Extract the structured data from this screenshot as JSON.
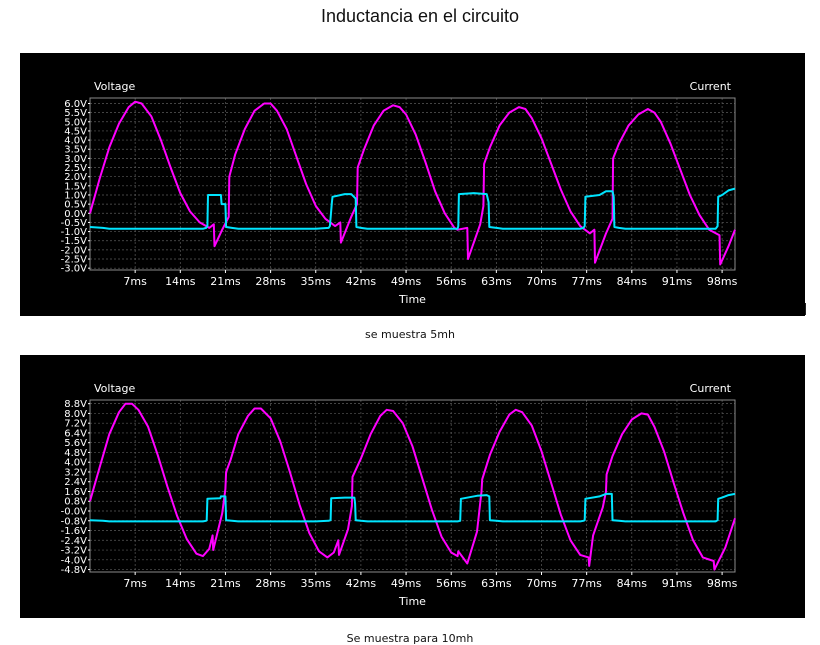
{
  "page_title": "Inductancia en el circuito",
  "colors": {
    "voltage": "#ff00ff",
    "current": "#00e5ff",
    "background": "#000000",
    "grid": "#5a5a5a",
    "text": "#ffffff"
  },
  "chart_data": [
    {
      "type": "line",
      "caption": "se muestra 5mh",
      "left_axis_label": "Voltage",
      "right_axis_label": "Current",
      "xlabel": "Time",
      "xlim": [
        0,
        100
      ],
      "ylim": [
        -3.1,
        6.3
      ],
      "x_ticks": [
        7,
        14,
        21,
        28,
        35,
        42,
        49,
        56,
        63,
        70,
        77,
        84,
        91,
        98
      ],
      "x_tick_labels": [
        "7ms",
        "14ms",
        "21ms",
        "28ms",
        "35ms",
        "42ms",
        "49ms",
        "56ms",
        "63ms",
        "70ms",
        "77ms",
        "84ms",
        "91ms",
        "98ms"
      ],
      "y_ticks": [
        6.0,
        5.5,
        5.0,
        4.5,
        4.0,
        3.5,
        3.0,
        2.5,
        2.0,
        1.5,
        1.0,
        0.5,
        0.0,
        -0.5,
        -1.0,
        -1.5,
        -2.0,
        -2.5,
        -3.0
      ],
      "y_tick_labels": [
        "6.0V",
        "5.5V",
        "5.0V",
        "4.5V",
        "4.0V",
        "3.5V",
        "3.0V",
        "2.5V",
        "2.0V",
        "1.5V",
        "1.0V",
        "0.5V",
        "0.0V",
        "-0.5V",
        "-1.0V",
        "-1.5V",
        "-2.0V",
        "-2.5V",
        "-3.0V"
      ],
      "grid": true,
      "series": [
        {
          "role": "voltage",
          "x": [
            0,
            1.5,
            3,
            4.5,
            6,
            7,
            8,
            9.5,
            11,
            12.5,
            14,
            15.5,
            17,
            18.5,
            19.2,
            19.3,
            20.5,
            21.5,
            21.6,
            22.5,
            24,
            25.5,
            27,
            28,
            29,
            30.5,
            32,
            33.5,
            35,
            36.5,
            38,
            38.8,
            38.9,
            40.5,
            41.4,
            41.5,
            42.5,
            44,
            45.5,
            47,
            48,
            49,
            50.5,
            52,
            53.5,
            55,
            56.5,
            57,
            58.5,
            58.6,
            60.5,
            61,
            61.1,
            62,
            63.5,
            65,
            66.5,
            67.5,
            68.5,
            70,
            71.5,
            73,
            74.5,
            76,
            77.5,
            78.2,
            78.3,
            80,
            81,
            81.1,
            82,
            83.5,
            85,
            86.5,
            87.5,
            88.5,
            90,
            91.5,
            93,
            94.5,
            96,
            97.6,
            97.7,
            99,
            100
          ],
          "y": [
            0.0,
            1.9,
            3.6,
            4.9,
            5.8,
            6.1,
            6.0,
            5.3,
            4.0,
            2.5,
            1.1,
            0.1,
            -0.5,
            -0.8,
            -0.6,
            -1.8,
            -0.9,
            -0.2,
            2.0,
            3.2,
            4.6,
            5.6,
            6.0,
            6.0,
            5.6,
            4.6,
            3.1,
            1.6,
            0.4,
            -0.3,
            -0.7,
            -0.5,
            -1.6,
            -0.2,
            0.5,
            2.5,
            3.5,
            4.8,
            5.6,
            5.9,
            5.8,
            5.4,
            4.3,
            2.8,
            1.2,
            0.0,
            -0.8,
            -0.9,
            -0.8,
            -2.5,
            -0.6,
            0.4,
            2.7,
            3.6,
            4.8,
            5.5,
            5.8,
            5.7,
            5.2,
            4.1,
            2.7,
            1.3,
            0.1,
            -0.7,
            -1.1,
            -0.9,
            -2.7,
            -1.1,
            -0.3,
            3.0,
            3.8,
            4.8,
            5.4,
            5.7,
            5.5,
            5.0,
            3.8,
            2.4,
            1.0,
            -0.1,
            -0.9,
            -1.2,
            -2.8,
            -1.8,
            -0.9
          ]
        },
        {
          "role": "current",
          "x": [
            0,
            2,
            3,
            17.5,
            18,
            18.2,
            18.3,
            20.3,
            20.4,
            21,
            21.1,
            22,
            23,
            35,
            37,
            37.2,
            37.5,
            37.6,
            39.5,
            40.5,
            41.2,
            41.3,
            42,
            43,
            57,
            57.1,
            57.2,
            59.5,
            61.5,
            61.8,
            61.9,
            63,
            64,
            76,
            76.5,
            76.7,
            76.8,
            79,
            80,
            81,
            81.2,
            81.3,
            82,
            83,
            97,
            97.3,
            97.4,
            98,
            99,
            100
          ],
          "y": [
            -0.75,
            -0.8,
            -0.85,
            -0.85,
            -0.8,
            -0.7,
            1.0,
            1.0,
            0.5,
            0.5,
            -0.75,
            -0.8,
            -0.85,
            -0.85,
            -0.8,
            -0.7,
            0.6,
            0.9,
            1.05,
            1.05,
            0.8,
            -0.75,
            -0.8,
            -0.85,
            -0.85,
            -0.7,
            1.05,
            1.1,
            1.05,
            0.6,
            -0.75,
            -0.8,
            -0.85,
            -0.85,
            -0.8,
            -0.7,
            0.9,
            1.0,
            1.2,
            1.2,
            0.9,
            -0.75,
            -0.8,
            -0.85,
            -0.85,
            -0.7,
            0.9,
            1.0,
            1.25,
            1.35
          ]
        }
      ]
    },
    {
      "type": "line",
      "caption": "Se muestra para 10mh",
      "left_axis_label": "Voltage",
      "right_axis_label": "Current",
      "xlabel": "Time",
      "xlim": [
        0,
        100
      ],
      "ylim": [
        -5.0,
        9.1
      ],
      "x_ticks": [
        7,
        14,
        21,
        28,
        35,
        42,
        49,
        56,
        63,
        70,
        77,
        84,
        91,
        98
      ],
      "x_tick_labels": [
        "7ms",
        "14ms",
        "21ms",
        "28ms",
        "35ms",
        "42ms",
        "49ms",
        "56ms",
        "63ms",
        "70ms",
        "77ms",
        "84ms",
        "91ms",
        "98ms"
      ],
      "y_ticks": [
        8.8,
        8.0,
        7.2,
        6.4,
        5.6,
        4.8,
        4.0,
        3.2,
        2.4,
        1.6,
        0.8,
        0.0,
        -0.8,
        -1.6,
        -2.4,
        -3.2,
        -4.0,
        -4.8
      ],
      "y_tick_labels": [
        "8.8V",
        "8.0V",
        "7.2V",
        "6.4V",
        "5.6V",
        "4.8V",
        "4.0V",
        "3.2V",
        "2.4V",
        "1.6V",
        "0.8V",
        "-0.0V",
        "-0.8V",
        "-1.6V",
        "-2.4V",
        "-3.2V",
        "-4.0V",
        "-4.8V"
      ],
      "grid": true,
      "series": [
        {
          "role": "voltage",
          "x": [
            0,
            1.5,
            3,
            4.5,
            5.5,
            6.5,
            7.5,
            9,
            10.5,
            12,
            13.5,
            15,
            16.5,
            17.5,
            18.5,
            19,
            19.1,
            20.5,
            21,
            21.1,
            21.8,
            23,
            24.5,
            25.5,
            26.5,
            28,
            29.5,
            31,
            32.5,
            34,
            35.5,
            36.8,
            37.8,
            38.5,
            38.6,
            40,
            40.6,
            40.7,
            42,
            43.5,
            45,
            46,
            47,
            48.5,
            50,
            51.5,
            53,
            54.5,
            56,
            57,
            57.1,
            58.5,
            60,
            60.7,
            60.8,
            62,
            63.5,
            65,
            66,
            67,
            68.5,
            70,
            71.5,
            73,
            74.5,
            76,
            77.3,
            77.4,
            78,
            79.5,
            80,
            80.1,
            81,
            82.5,
            84,
            85.5,
            86.5,
            87.5,
            89,
            90.5,
            92,
            93.5,
            95,
            96.7,
            96.8,
            98.5,
            100
          ],
          "y": [
            0.8,
            3.6,
            6.3,
            8.1,
            8.8,
            8.8,
            8.3,
            6.9,
            4.6,
            2.0,
            -0.4,
            -2.3,
            -3.5,
            -3.7,
            -3.1,
            -2.0,
            -3.2,
            -0.2,
            1.8,
            3.2,
            4.2,
            6.3,
            7.8,
            8.4,
            8.4,
            7.6,
            5.7,
            3.2,
            0.5,
            -1.8,
            -3.3,
            -3.8,
            -3.4,
            -2.4,
            -3.6,
            -1.5,
            0.4,
            2.8,
            4.3,
            6.3,
            7.8,
            8.3,
            8.2,
            7.2,
            5.3,
            2.7,
            0.1,
            -2.1,
            -3.4,
            -3.7,
            -3.3,
            -4.3,
            -1.7,
            1.6,
            2.6,
            4.6,
            6.5,
            7.9,
            8.3,
            8.1,
            7.0,
            4.9,
            2.3,
            -0.3,
            -2.4,
            -3.6,
            -3.8,
            -4.5,
            -2.0,
            0.3,
            1.6,
            3.0,
            4.5,
            6.3,
            7.5,
            8.0,
            7.9,
            6.9,
            4.9,
            2.3,
            -0.2,
            -2.4,
            -3.8,
            -4.1,
            -4.8,
            -3.0,
            -0.6
          ]
        },
        {
          "role": "current",
          "x": [
            0,
            2,
            3,
            17.5,
            18,
            18.1,
            18.2,
            20.2,
            20.3,
            21,
            21.1,
            22,
            23,
            35,
            37,
            37.3,
            37.4,
            39.5,
            41,
            41.1,
            41.2,
            42,
            43,
            57,
            57.4,
            57.5,
            60,
            61.5,
            61.9,
            62,
            63,
            64,
            76,
            76.5,
            76.7,
            76.8,
            79,
            80,
            80.9,
            81.0,
            82,
            83,
            97,
            97.3,
            97.4,
            98,
            99,
            100
          ],
          "y": [
            -0.75,
            -0.8,
            -0.85,
            -0.85,
            -0.8,
            -0.75,
            1.0,
            1.05,
            1.2,
            1.2,
            -0.75,
            -0.8,
            -0.85,
            -0.85,
            -0.8,
            -0.75,
            1.05,
            1.1,
            1.1,
            0.6,
            -0.75,
            -0.8,
            -0.85,
            -0.85,
            -0.8,
            1.0,
            1.25,
            1.3,
            1.2,
            -0.75,
            -0.8,
            -0.85,
            -0.85,
            -0.8,
            -0.75,
            1.0,
            1.2,
            1.4,
            1.4,
            -0.75,
            -0.8,
            -0.85,
            -0.85,
            -0.75,
            1.0,
            1.1,
            1.3,
            1.4
          ]
        }
      ]
    }
  ]
}
